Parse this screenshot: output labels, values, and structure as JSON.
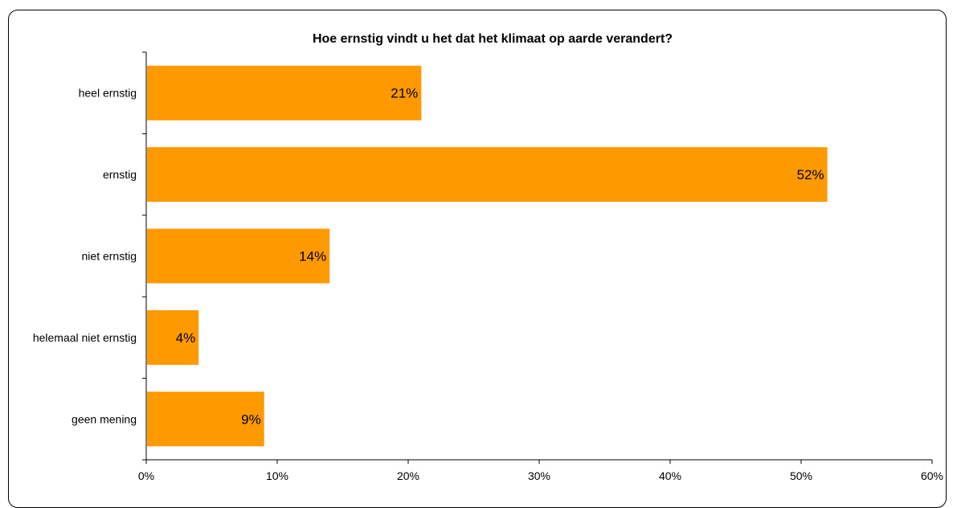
{
  "chart_data": {
    "type": "bar",
    "orientation": "horizontal",
    "title": "Hoe ernstig vindt u het dat het klimaat op aarde verandert?",
    "categories": [
      "heel ernstig",
      "ernstig",
      "niet ernstig",
      "helemaal niet ernstig",
      "geen mening"
    ],
    "values": [
      21,
      52,
      14,
      4,
      9
    ],
    "value_labels": [
      "21%",
      "52%",
      "14%",
      "4%",
      "9%"
    ],
    "xlim": [
      0,
      60
    ],
    "xticks": [
      0,
      10,
      20,
      30,
      40,
      50,
      60
    ],
    "xtick_labels": [
      "0%",
      "10%",
      "20%",
      "30%",
      "40%",
      "50%",
      "60%"
    ],
    "xlabel": "",
    "ylabel": "",
    "grid": false,
    "legend": "none",
    "bar_color": "#FF9900"
  }
}
